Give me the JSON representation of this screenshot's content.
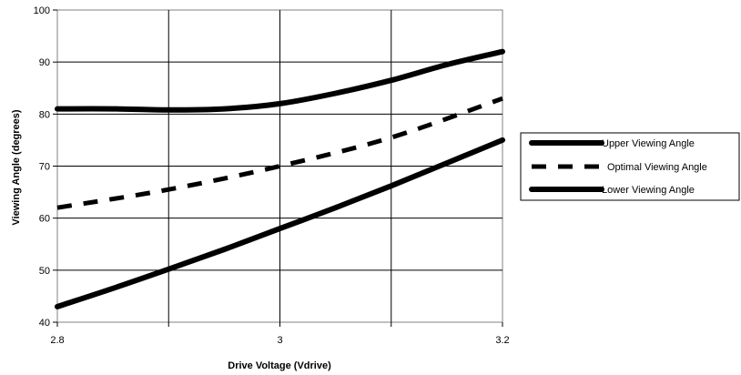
{
  "chart_data": {
    "type": "line",
    "title": "",
    "xlabel": "Drive Voltage (Vdrive)",
    "ylabel": "Viewing Angle (degrees)",
    "xlim": [
      2.8,
      3.2
    ],
    "ylim": [
      40,
      100
    ],
    "x_ticks": [
      "2.8",
      "3",
      "3.2"
    ],
    "y_ticks": [
      "40",
      "50",
      "60",
      "70",
      "80",
      "90",
      "100"
    ],
    "x_tick_values": [
      2.8,
      3.0,
      3.2
    ],
    "y_tick_values": [
      40,
      50,
      60,
      70,
      80,
      90,
      100
    ],
    "x_grid_values": [
      2.8,
      2.9,
      3.0,
      3.1,
      3.2
    ],
    "grid": true,
    "legend_position": "right",
    "series": [
      {
        "name": "Upper Viewing Angle",
        "style": "solid",
        "color": "#000000",
        "x": [
          2.8,
          2.85,
          2.9,
          2.95,
          3.0,
          3.05,
          3.1,
          3.15,
          3.2
        ],
        "y": [
          81,
          81,
          80.8,
          81,
          82,
          84,
          86.5,
          89.5,
          92
        ]
      },
      {
        "name": "Optimal Viewing Angle",
        "style": "dashed",
        "color": "#000000",
        "x": [
          2.8,
          2.9,
          3.0,
          3.1,
          3.2
        ],
        "y": [
          62,
          65.5,
          70,
          75.5,
          83
        ]
      },
      {
        "name": "Lower Viewing Angle",
        "style": "solid",
        "color": "#000000",
        "x": [
          2.8,
          2.85,
          2.9,
          2.95,
          3.0,
          3.05,
          3.1,
          3.15,
          3.2
        ],
        "y": [
          43,
          46.5,
          50.2,
          54,
          58,
          62,
          66.2,
          70.6,
          75
        ]
      }
    ]
  }
}
